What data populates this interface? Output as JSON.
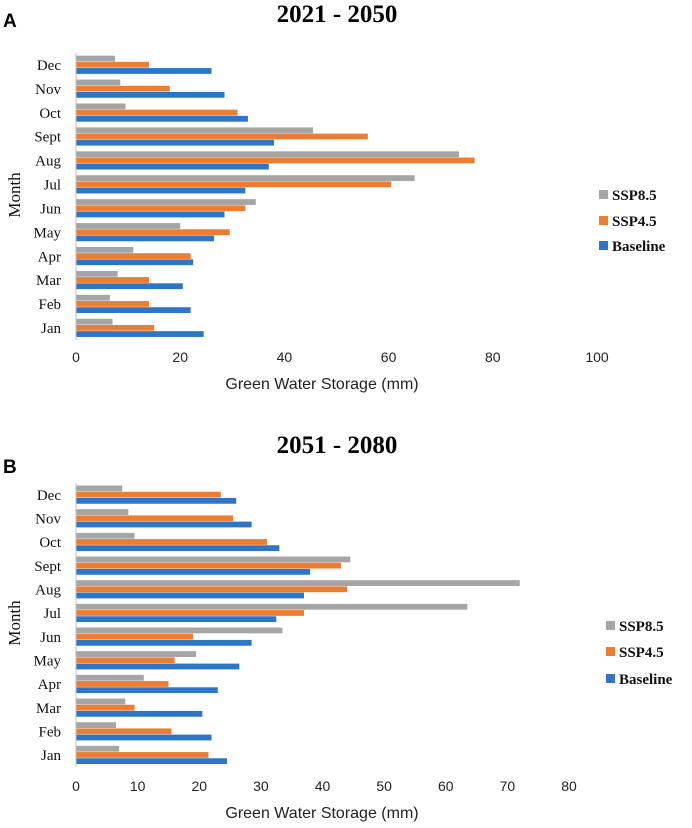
{
  "colors": {
    "SSP8.5": "#a5a5a5",
    "SSP4.5": "#ed7d31",
    "Baseline": "#2e75c6"
  },
  "chart_data": [
    {
      "panel": "A",
      "type": "bar",
      "orientation": "horizontal",
      "title": "2021 - 2050",
      "xlabel": "Green Water Storage (mm)",
      "ylabel": "Month",
      "xlim": [
        0,
        100
      ],
      "xticks": [
        "0",
        "20",
        "40",
        "60",
        "80",
        "100"
      ],
      "categories": [
        "Jan",
        "Feb",
        "Mar",
        "Apr",
        "May",
        "Jun",
        "Jul",
        "Aug",
        "Sept",
        "Oct",
        "Nov",
        "Dec"
      ],
      "legend_position": "right",
      "series": [
        {
          "name": "SSP8.5",
          "values": [
            7,
            6.5,
            8,
            11,
            20,
            34.5,
            65,
            73.5,
            45.5,
            9.5,
            8.5,
            7.5
          ]
        },
        {
          "name": "SSP4.5",
          "values": [
            15,
            14,
            14,
            22,
            29.5,
            32.5,
            60.5,
            76.5,
            56,
            31,
            18,
            14
          ]
        },
        {
          "name": "Baseline",
          "values": [
            24.5,
            22,
            20.5,
            22.5,
            26.5,
            28.5,
            32.5,
            37,
            38,
            33,
            28.5,
            26
          ]
        }
      ]
    },
    {
      "panel": "B",
      "type": "bar",
      "orientation": "horizontal",
      "title": "2051 - 2080",
      "xlabel": "Green Water Storage (mm)",
      "ylabel": "Month",
      "xlim": [
        0,
        80
      ],
      "xticks": [
        "0",
        "10",
        "20",
        "30",
        "40",
        "50",
        "60",
        "70",
        "80"
      ],
      "categories": [
        "Jan",
        "Feb",
        "Mar",
        "Apr",
        "May",
        "Jun",
        "Jul",
        "Aug",
        "Sept",
        "Oct",
        "Nov",
        "Dec"
      ],
      "legend_position": "right",
      "series": [
        {
          "name": "SSP8.5",
          "values": [
            7,
            6.5,
            8,
            11,
            19.5,
            33.5,
            63.5,
            72,
            44.5,
            9.5,
            8.5,
            7.5
          ]
        },
        {
          "name": "SSP4.5",
          "values": [
            21.5,
            15.5,
            9.5,
            15,
            16,
            19,
            37,
            44,
            43,
            31,
            25.5,
            23.5
          ]
        },
        {
          "name": "Baseline",
          "values": [
            24.5,
            22,
            20.5,
            23,
            26.5,
            28.5,
            32.5,
            37,
            38,
            33,
            28.5,
            26
          ]
        }
      ]
    }
  ]
}
